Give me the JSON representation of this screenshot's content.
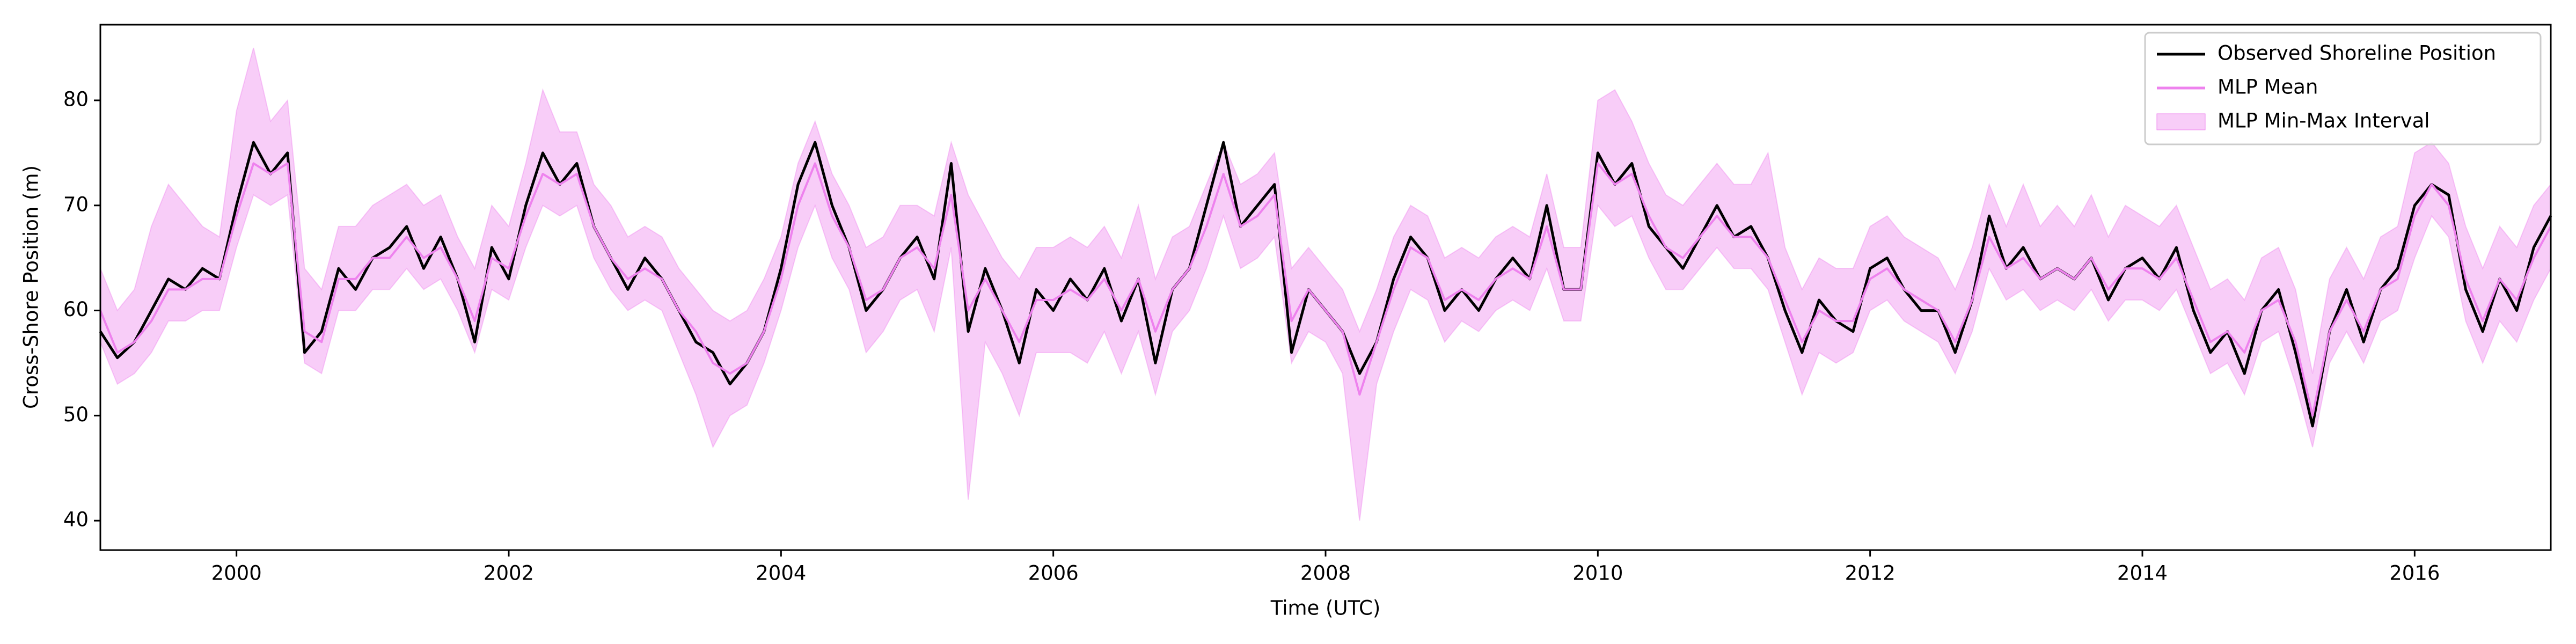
{
  "chart_data": {
    "type": "line",
    "xlabel": "Time (UTC)",
    "ylabel": "Cross-Shore Position (m)",
    "xlim": [
      1999.0,
      2017.0
    ],
    "ylim": [
      37.2,
      87.2
    ],
    "xticks": [
      2000,
      2002,
      2004,
      2006,
      2008,
      2010,
      2012,
      2014,
      2016
    ],
    "yticks": [
      40,
      50,
      60,
      70,
      80
    ],
    "legend": "upper right",
    "x": [
      1999,
      1999.125,
      1999.25,
      1999.375,
      1999.5,
      1999.625,
      1999.75,
      1999.875,
      2000,
      2000.125,
      2000.25,
      2000.375,
      2000.5,
      2000.625,
      2000.75,
      2000.875,
      2001,
      2001.125,
      2001.25,
      2001.375,
      2001.5,
      2001.625,
      2001.75,
      2001.875,
      2002,
      2002.125,
      2002.25,
      2002.375,
      2002.5,
      2002.625,
      2002.75,
      2002.875,
      2003,
      2003.125,
      2003.25,
      2003.375,
      2003.5,
      2003.625,
      2003.75,
      2003.875,
      2004,
      2004.125,
      2004.25,
      2004.375,
      2004.5,
      2004.625,
      2004.75,
      2004.875,
      2005,
      2005.125,
      2005.25,
      2005.375,
      2005.5,
      2005.625,
      2005.75,
      2005.875,
      2006,
      2006.125,
      2006.25,
      2006.375,
      2006.5,
      2006.625,
      2006.75,
      2006.875,
      2007,
      2007.125,
      2007.25,
      2007.375,
      2007.5,
      2007.625,
      2007.75,
      2007.875,
      2008,
      2008.125,
      2008.25,
      2008.375,
      2008.5,
      2008.625,
      2008.75,
      2008.875,
      2009,
      2009.125,
      2009.25,
      2009.375,
      2009.5,
      2009.625,
      2009.75,
      2009.875,
      2010,
      2010.125,
      2010.25,
      2010.375,
      2010.5,
      2010.625,
      2010.75,
      2010.875,
      2011,
      2011.125,
      2011.25,
      2011.375,
      2011.5,
      2011.625,
      2011.75,
      2011.875,
      2012,
      2012.125,
      2012.25,
      2012.375,
      2012.5,
      2012.625,
      2012.75,
      2012.875,
      2013,
      2013.125,
      2013.25,
      2013.375,
      2013.5,
      2013.625,
      2013.75,
      2013.875,
      2014,
      2014.125,
      2014.25,
      2014.375,
      2014.5,
      2014.625,
      2014.75,
      2014.875,
      2015,
      2015.125,
      2015.25,
      2015.375,
      2015.5,
      2015.625,
      2015.75,
      2015.875,
      2016,
      2016.125,
      2016.25,
      2016.375,
      2016.5,
      2016.625,
      2016.75,
      2016.875,
      2017
    ],
    "band": {
      "name": "MLP Min-Max Interval",
      "color": "#ee82ee",
      "lower": [
        57,
        53,
        54,
        56,
        59,
        59,
        60,
        60,
        66,
        71,
        70,
        71,
        55,
        54,
        60,
        60,
        62,
        62,
        64,
        62,
        63,
        60,
        56,
        62,
        61,
        66,
        70,
        69,
        70,
        65,
        62,
        60,
        61,
        60,
        56,
        52,
        47,
        50,
        51,
        55,
        60,
        66,
        70,
        65,
        62,
        56,
        58,
        61,
        62,
        58,
        66,
        42,
        57,
        54,
        50,
        56,
        56,
        56,
        55,
        58,
        54,
        58,
        52,
        58,
        60,
        64,
        69,
        64,
        65,
        67,
        55,
        58,
        57,
        54,
        40,
        53,
        58,
        62,
        61,
        57,
        59,
        58,
        60,
        61,
        60,
        64,
        59,
        59,
        70,
        68,
        69,
        65,
        62,
        62,
        64,
        66,
        64,
        64,
        62,
        57,
        52,
        56,
        55,
        56,
        60,
        61,
        59,
        58,
        57,
        54,
        58,
        64,
        61,
        62,
        60,
        61,
        60,
        62,
        59,
        61,
        61,
        60,
        62,
        58,
        54,
        55,
        52,
        57,
        58,
        53,
        47,
        55,
        58,
        55,
        59,
        60,
        65,
        69,
        67,
        59,
        55,
        59,
        57,
        61,
        64
      ],
      "upper": [
        64,
        60,
        62,
        68,
        72,
        70,
        68,
        67,
        79,
        85,
        78,
        80,
        64,
        62,
        68,
        68,
        70,
        71,
        72,
        70,
        71,
        67,
        64,
        70,
        68,
        74,
        81,
        77,
        77,
        72,
        70,
        67,
        68,
        67,
        64,
        62,
        60,
        59,
        60,
        63,
        67,
        74,
        78,
        73,
        70,
        66,
        67,
        70,
        70,
        69,
        76,
        71,
        68,
        65,
        63,
        66,
        66,
        67,
        66,
        68,
        65,
        70,
        63,
        67,
        68,
        72,
        76,
        72,
        73,
        75,
        64,
        66,
        64,
        62,
        58,
        62,
        67,
        70,
        69,
        65,
        66,
        65,
        67,
        68,
        67,
        73,
        66,
        66,
        80,
        81,
        78,
        74,
        71,
        70,
        72,
        74,
        72,
        72,
        75,
        66,
        62,
        65,
        64,
        64,
        68,
        69,
        67,
        66,
        65,
        62,
        66,
        72,
        68,
        72,
        68,
        70,
        68,
        71,
        67,
        70,
        69,
        68,
        70,
        66,
        62,
        63,
        61,
        65,
        66,
        62,
        54,
        63,
        66,
        63,
        67,
        68,
        75,
        76,
        74,
        68,
        64,
        68,
        66,
        70,
        72
      ]
    },
    "series": [
      {
        "name": "Observed Shoreline Position",
        "color": "#000000",
        "values": [
          58,
          55.5,
          57,
          60,
          63,
          62,
          64,
          63,
          70,
          76,
          73,
          75,
          56,
          58,
          64,
          62,
          65,
          66,
          68,
          64,
          67,
          63,
          57,
          66,
          63,
          70,
          75,
          72,
          74,
          68,
          65,
          62,
          65,
          63,
          60,
          57,
          56,
          53,
          55,
          58,
          64,
          72,
          76,
          70,
          66,
          60,
          62,
          65,
          67,
          63,
          74,
          58,
          64,
          60,
          55,
          62,
          60,
          63,
          61,
          64,
          59,
          63,
          55,
          62,
          64,
          70,
          76,
          68,
          70,
          72,
          56,
          62,
          60,
          58,
          54,
          57,
          63,
          67,
          65,
          60,
          62,
          60,
          63,
          65,
          63,
          70,
          62,
          62,
          75,
          72,
          74,
          68,
          66,
          64,
          67,
          70,
          67,
          68,
          65,
          60,
          56,
          61,
          59,
          58,
          64,
          65,
          62,
          60,
          60,
          56,
          61,
          69,
          64,
          66,
          63,
          64,
          63,
          65,
          61,
          64,
          65,
          63,
          66,
          60,
          56,
          58,
          54,
          60,
          62,
          56,
          49,
          58,
          62,
          57,
          62,
          64,
          70,
          72,
          71,
          62,
          58,
          63,
          60,
          66,
          69
        ]
      },
      {
        "name": "MLP Mean",
        "color": "#ee82ee",
        "values": [
          60,
          56,
          57,
          59,
          62,
          62,
          63,
          63,
          69,
          74,
          73,
          74,
          58,
          57,
          63,
          63,
          65,
          65,
          67,
          65,
          66,
          63,
          59,
          65,
          64,
          69,
          73,
          72,
          73,
          68,
          65,
          63,
          64,
          63,
          60,
          58,
          55,
          54,
          55,
          58,
          63,
          70,
          74,
          69,
          66,
          61,
          62,
          65,
          66,
          64,
          71,
          60,
          63,
          60,
          57,
          61,
          61,
          62,
          61,
          63,
          60,
          63,
          58,
          62,
          64,
          68,
          73,
          68,
          69,
          71,
          59,
          62,
          60,
          58,
          52,
          57,
          62,
          66,
          65,
          61,
          62,
          61,
          63,
          64,
          63,
          68,
          62,
          62,
          74,
          72,
          73,
          69,
          66,
          65,
          67,
          69,
          67,
          67,
          65,
          61,
          57,
          60,
          59,
          59,
          63,
          64,
          62,
          61,
          60,
          57,
          61,
          67,
          64,
          65,
          63,
          64,
          63,
          65,
          62,
          64,
          64,
          63,
          65,
          61,
          57,
          58,
          56,
          60,
          61,
          57,
          50,
          58,
          61,
          58,
          62,
          63,
          69,
          72,
          70,
          63,
          59,
          63,
          61,
          65,
          68
        ]
      }
    ]
  }
}
